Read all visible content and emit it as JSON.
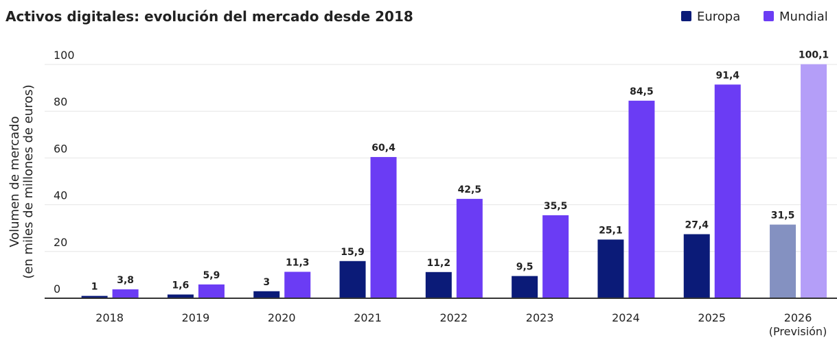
{
  "chart_data": {
    "type": "bar",
    "title": "Activos digitales: evolución del mercado desde 2018",
    "y_label": [
      "Volumen de mercado",
      "(en miles de millones de euros)"
    ],
    "categories": [
      "2018",
      "2019",
      "2020",
      "2021",
      "2022",
      "2023",
      "2024",
      "2025",
      "2026\n(Previsión)"
    ],
    "series": [
      {
        "name": "Europa",
        "color": "#0b1b78",
        "colors": [
          "#0b1b78",
          "#0b1b78",
          "#0b1b78",
          "#0b1b78",
          "#0b1b78",
          "#0b1b78",
          "#0b1b78",
          "#0b1b78",
          "#8491c1"
        ],
        "values": [
          1,
          1.6,
          3,
          15.9,
          11.2,
          9.5,
          25.1,
          27.4,
          31.5
        ],
        "value_labels": [
          "1",
          "1,6",
          "3",
          "15,9",
          "11,2",
          "9,5",
          "25,1",
          "27,4",
          "31,5"
        ]
      },
      {
        "name": "Mundial",
        "color": "#6b3cf4",
        "colors": [
          "#6b3cf4",
          "#6b3cf4",
          "#6b3cf4",
          "#6b3cf4",
          "#6b3cf4",
          "#6b3cf4",
          "#6b3cf4",
          "#6b3cf4",
          "#b49ef8"
        ],
        "values": [
          3.8,
          5.9,
          11.3,
          60.4,
          42.5,
          35.5,
          84.5,
          91.4,
          100.1
        ],
        "value_labels": [
          "3,8",
          "5,9",
          "11,3",
          "60,4",
          "42,5",
          "35,5",
          "84,5",
          "91,4",
          "100,1"
        ]
      }
    ],
    "ylim": [
      0,
      100
    ],
    "yticks": [
      0,
      20,
      40,
      60,
      80,
      100
    ],
    "grid": true,
    "legend": "top-right"
  }
}
